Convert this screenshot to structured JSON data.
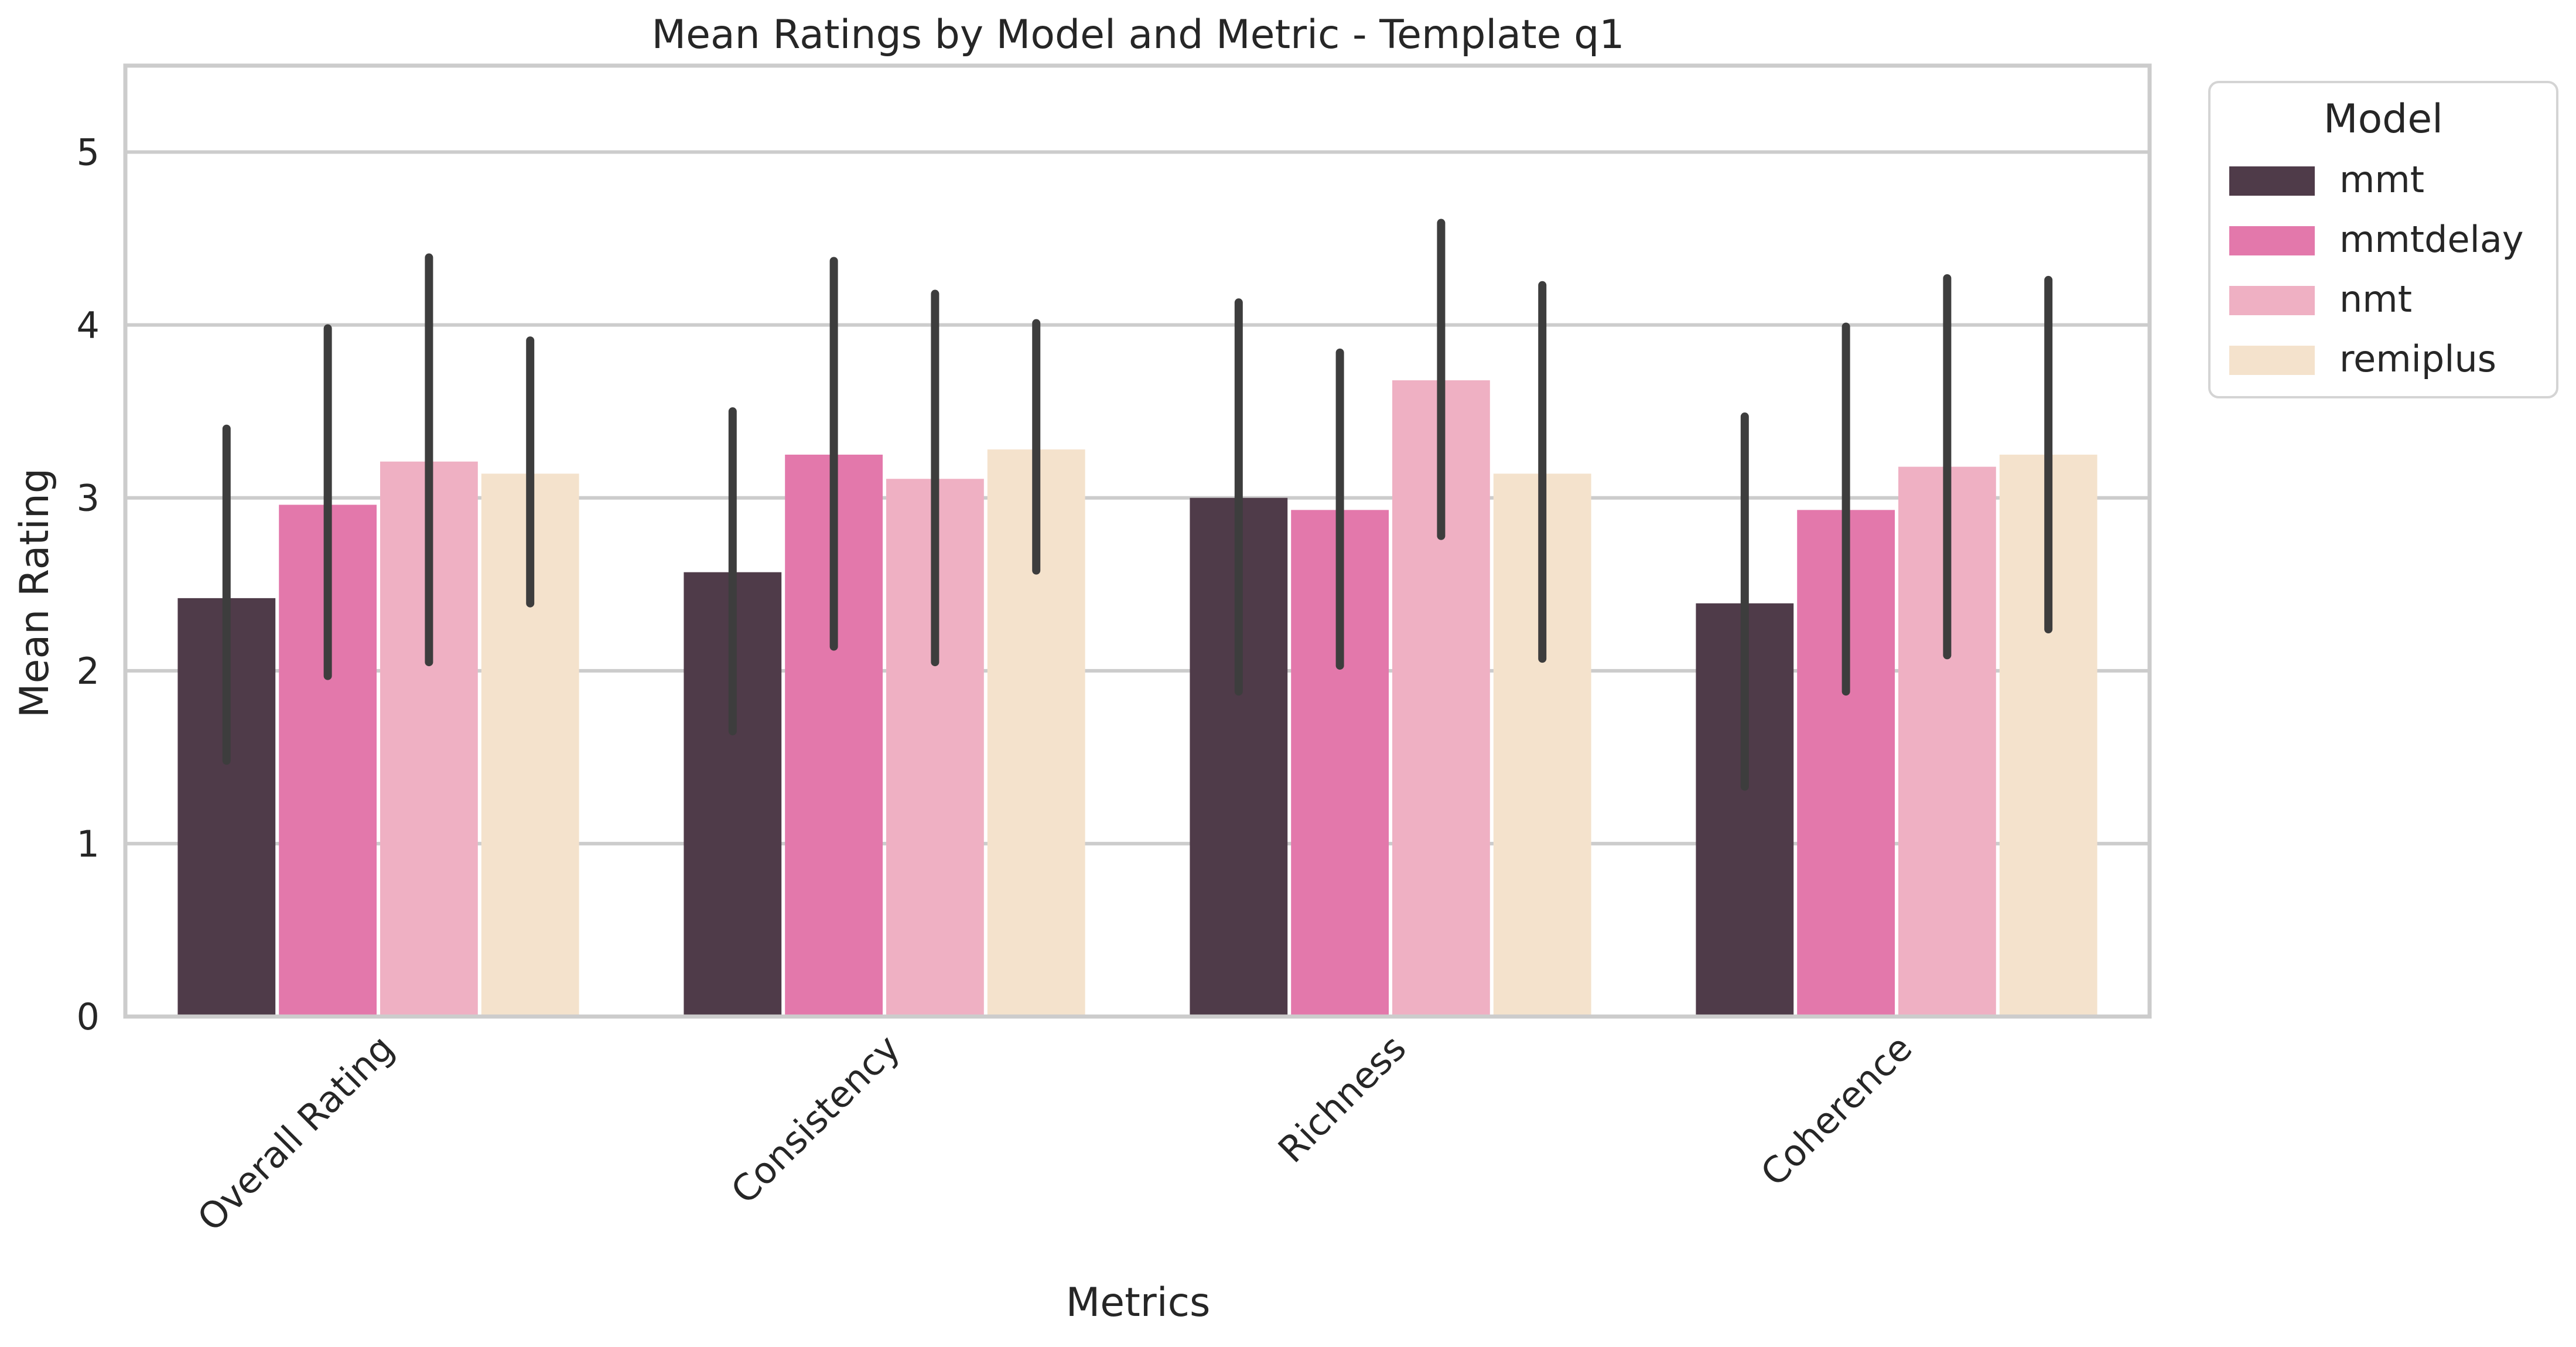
{
  "chart_data": {
    "type": "bar",
    "title": "Mean Ratings by Model and Metric - Template q1",
    "xlabel": "Metrics",
    "ylabel": "Mean Rating",
    "ylim": [
      0,
      5.5
    ],
    "yticks": [
      0,
      1,
      2,
      3,
      4,
      5
    ],
    "grid": true,
    "legend": {
      "title": "Model",
      "placement": "outside-top-right"
    },
    "categories": [
      "Overall Rating",
      "Consistency",
      "Richness",
      "Coherence"
    ],
    "series": [
      {
        "name": "mmt",
        "color": "#4f3b49",
        "values": [
          2.42,
          2.57,
          3.0,
          2.39
        ],
        "err_low": [
          1.48,
          1.65,
          1.88,
          1.33
        ],
        "err_high": [
          3.4,
          3.5,
          4.13,
          3.47
        ]
      },
      {
        "name": "mmtdelay",
        "color": "#e378ab",
        "values": [
          2.96,
          3.25,
          2.93,
          2.93
        ],
        "err_low": [
          1.97,
          2.14,
          2.03,
          1.88
        ],
        "err_high": [
          3.98,
          4.37,
          3.84,
          3.99
        ]
      },
      {
        "name": "nmt",
        "color": "#efb0c3",
        "values": [
          3.21,
          3.11,
          3.68,
          3.18
        ],
        "err_low": [
          2.05,
          2.05,
          2.78,
          2.09
        ],
        "err_high": [
          4.39,
          4.18,
          4.59,
          4.27
        ]
      },
      {
        "name": "remiplus",
        "color": "#f4e2cc",
        "values": [
          3.14,
          3.28,
          3.14,
          3.25
        ],
        "err_low": [
          2.39,
          2.58,
          2.07,
          2.24
        ],
        "err_high": [
          3.91,
          4.01,
          4.23,
          4.26
        ]
      }
    ]
  }
}
